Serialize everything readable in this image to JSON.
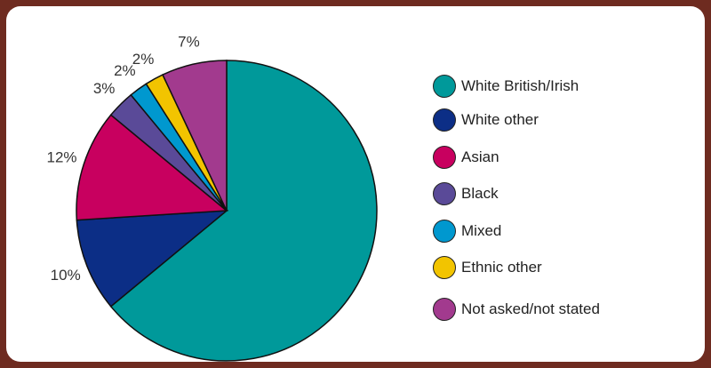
{
  "chart_data": {
    "type": "pie",
    "title": "",
    "series": [
      {
        "name": "White British/Irish",
        "value": 64,
        "label": "",
        "color": "#00999a"
      },
      {
        "name": "White other",
        "value": 10,
        "label": "10%",
        "color": "#0c2e86"
      },
      {
        "name": "Asian",
        "value": 12,
        "label": "12%",
        "color": "#c8005f"
      },
      {
        "name": "Black",
        "value": 3,
        "label": "3%",
        "color": "#5a4a98"
      },
      {
        "name": "Mixed",
        "value": 2,
        "label": "2%",
        "color": "#0098cf"
      },
      {
        "name": "Ethnic other",
        "value": 2,
        "label": "2%",
        "color": "#f2c400"
      },
      {
        "name": "Not asked/not stated",
        "value": 7,
        "label": "7%",
        "color": "#a23a8e"
      }
    ],
    "legend_placement": "right"
  },
  "colors": {
    "frame": "#6e2b20",
    "panel": "#ffffff"
  }
}
